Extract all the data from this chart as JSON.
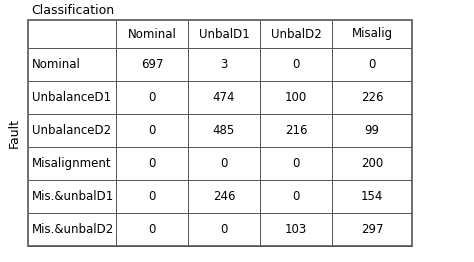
{
  "title": "Classification",
  "y_label": "Fault",
  "col_headers": [
    "",
    "Nominal",
    "UnbalD1",
    "UnbalD2",
    "Misalig"
  ],
  "row_headers": [
    "Nominal",
    "UnbalanceD1",
    "UnbalanceD2",
    "Misalignment",
    "Mis.&unbalD1",
    "Mis.&unbalD2"
  ],
  "table_data": [
    [
      "697",
      "3",
      "0",
      "0"
    ],
    [
      "0",
      "474",
      "100",
      "226"
    ],
    [
      "0",
      "485",
      "216",
      "99"
    ],
    [
      "0",
      "0",
      "0",
      "200"
    ],
    [
      "0",
      "246",
      "0",
      "154"
    ],
    [
      "0",
      "0",
      "103",
      "297"
    ]
  ],
  "bg_color": "#ffffff",
  "text_color": "#000000",
  "border_color": "#555555",
  "title_fontsize": 9,
  "cell_fontsize": 8.5,
  "ylabel_fontsize": 9,
  "fig_width": 4.74,
  "fig_height": 2.62,
  "dpi": 100
}
